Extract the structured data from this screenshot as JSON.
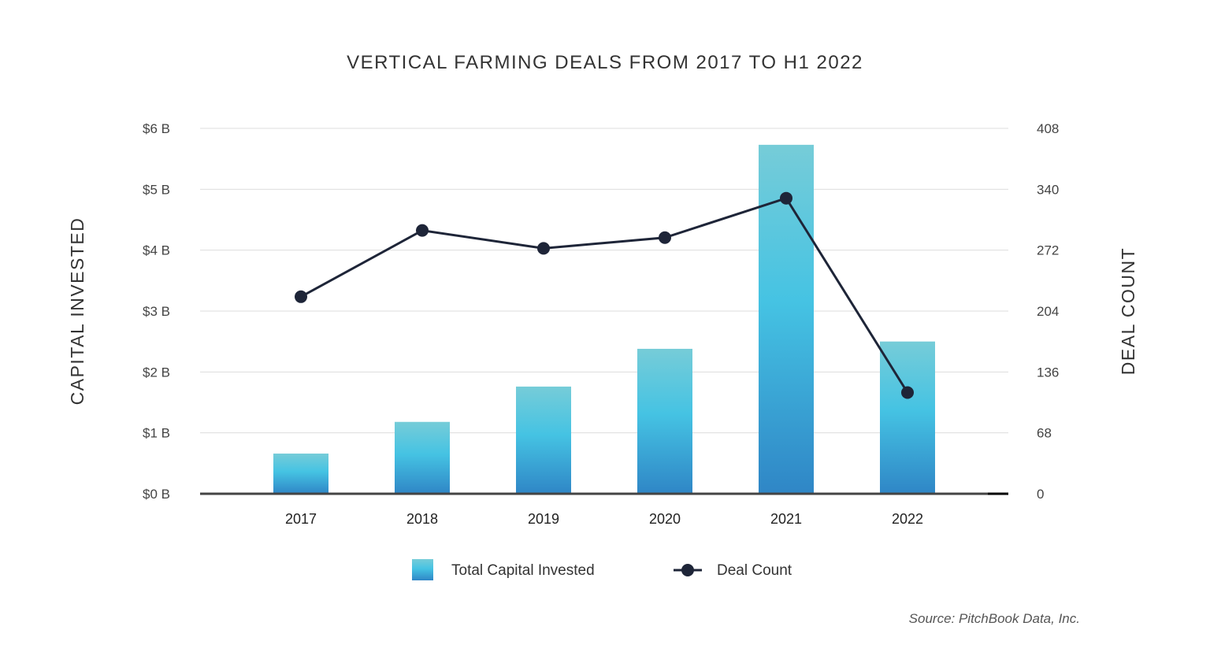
{
  "chart_data": {
    "type": "bar+line",
    "title": "VERTICAL FARMING DEALS FROM 2017 TO H1 2022",
    "categories": [
      "2017",
      "2018",
      "2019",
      "2020",
      "2021",
      "2022"
    ],
    "series": [
      {
        "name": "Total Capital Invested",
        "type": "bar",
        "axis": "left",
        "values": [
          0.66,
          1.18,
          1.76,
          2.38,
          5.73,
          2.5
        ]
      },
      {
        "name": "Deal Count",
        "type": "line",
        "axis": "right",
        "values": [
          220,
          294,
          274,
          286,
          330,
          113
        ]
      }
    ],
    "ylabel": "CAPITAL INVESTED",
    "y2label": "DEAL COUNT",
    "ylim": [
      0,
      6
    ],
    "y2lim": [
      0,
      408
    ],
    "yticks": [
      "$0 B",
      "$1 B",
      "$2 B",
      "$3 B",
      "$4 B",
      "$5 B",
      "$6 B"
    ],
    "y2ticks": [
      "0",
      "68",
      "136",
      "204",
      "272",
      "340",
      "408"
    ],
    "grid": true,
    "legend_placement": "bottom",
    "source": "Source: PitchBook Data, Inc.",
    "colors": {
      "bar_top": "#76ccd8",
      "bar_mid": "#45c3e3",
      "bar_bottom": "#2f86c6",
      "line": "#1e2538",
      "grid": "#dddddd",
      "axis": "#444444"
    }
  }
}
